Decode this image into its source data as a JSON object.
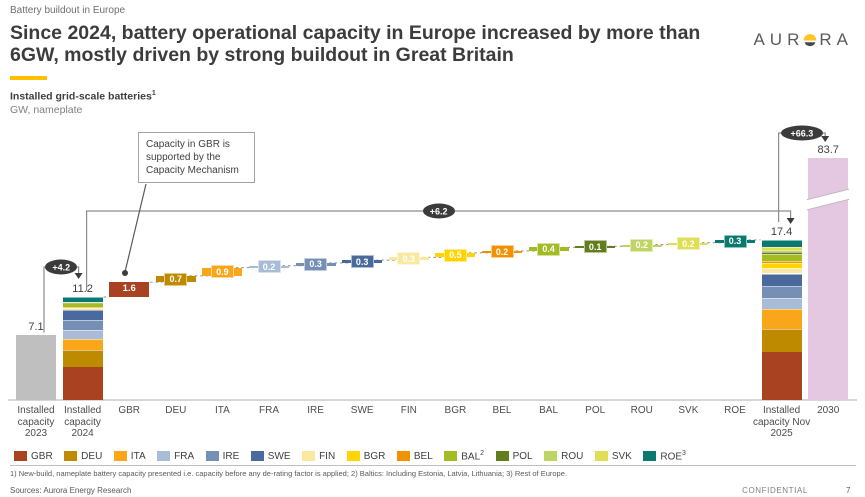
{
  "header": {
    "kicker": "Battery buildout in Europe",
    "title": "Since 2024, battery operational capacity in Europe increased by more than\n6GW, mostly driven by strong buildout in Great Britain",
    "subtitle_bold": "Installed grid-scale batteries",
    "subtitle_sup": "1",
    "subtitle_unit": "GW, nameplate",
    "accent_color": "#FFC000",
    "logo": {
      "text_before_icon": "AUR",
      "text_after_icon": "RA",
      "sun_yellow": "#FFC425",
      "sun_dark": "#48484A"
    }
  },
  "chart_data": {
    "type": "waterfall",
    "title": "Installed grid-scale batteries",
    "ylabel": "GW, nameplate",
    "columns": [
      {
        "id": "ic2023",
        "label": "Installed capacity 2023",
        "kind": "total",
        "value": 7.1,
        "color": "#BFBFBF"
      },
      {
        "id": "ic2024",
        "label": "Installed capacity 2024",
        "kind": "stacked",
        "value": 11.2,
        "stack": "base"
      },
      {
        "id": "GBR",
        "label": "GBR",
        "kind": "delta",
        "value": 1.6
      },
      {
        "id": "DEU",
        "label": "DEU",
        "kind": "delta",
        "value": 0.7
      },
      {
        "id": "ITA",
        "label": "ITA",
        "kind": "delta",
        "value": 0.9
      },
      {
        "id": "FRA",
        "label": "FRA",
        "kind": "delta",
        "value": 0.2
      },
      {
        "id": "IRE",
        "label": "IRE",
        "kind": "delta",
        "value": 0.3
      },
      {
        "id": "SWE",
        "label": "SWE",
        "kind": "delta",
        "value": 0.3
      },
      {
        "id": "FIN",
        "label": "FIN",
        "kind": "delta",
        "value": 0.3
      },
      {
        "id": "BGR",
        "label": "BGR",
        "kind": "delta",
        "value": 0.5
      },
      {
        "id": "BEL",
        "label": "BEL",
        "kind": "delta",
        "value": 0.2
      },
      {
        "id": "BAL",
        "label": "BAL",
        "kind": "delta",
        "value": 0.4
      },
      {
        "id": "POL",
        "label": "POL",
        "kind": "delta",
        "value": 0.1
      },
      {
        "id": "ROU",
        "label": "ROU",
        "kind": "delta",
        "value": 0.2
      },
      {
        "id": "SVK",
        "label": "SVK",
        "kind": "delta",
        "value": 0.2
      },
      {
        "id": "ROE",
        "label": "ROE",
        "kind": "delta",
        "value": 0.3
      },
      {
        "id": "nov2025",
        "label": "Installed capacity Nov 2025",
        "kind": "stacked",
        "value": 17.4,
        "stack": "base_plus_deltas"
      },
      {
        "id": "y2030",
        "label": "2030",
        "kind": "total",
        "value": 83.7,
        "color": "#E4C8E1",
        "axis_break": true
      }
    ],
    "stack_order": [
      "GBR",
      "DEU",
      "ITA",
      "FRA",
      "IRE",
      "SWE",
      "FIN",
      "BGR",
      "BEL",
      "BAL",
      "POL",
      "ROU",
      "SVK",
      "ROE"
    ],
    "composition_2024_estimate": {
      "GBR": 3.6,
      "DEU": 1.8,
      "ITA": 1.25,
      "FRA": 1.0,
      "IRE": 1.0,
      "SWE": 1.1,
      "FIN": 0.25,
      "BGR": 0.1,
      "BEL": 0.05,
      "BAL": 0.35,
      "POL": 0.05,
      "ROU": 0.05,
      "SVK": 0.1,
      "ROE": 0.5
    },
    "colors": {
      "GBR": "#A84220",
      "DEU": "#BD8A00",
      "ITA": "#F9A61B",
      "FRA": "#A8BCD8",
      "IRE": "#7590B4",
      "SWE": "#4A6A9D",
      "FIN": "#FBE8A0",
      "BGR": "#FFD400",
      "BEL": "#F39200",
      "BAL": "#A2BD24",
      "POL": "#637D1E",
      "ROU": "#BED562",
      "SVK": "#DFDE55",
      "ROE": "#0A7A70"
    },
    "bridges": [
      {
        "label": "+4.2",
        "from": "ic2023",
        "to": "ic2024"
      },
      {
        "label": "+6.2",
        "from": "ic2024",
        "to": "nov2025"
      },
      {
        "label": "+66.3",
        "from": "nov2025",
        "to": "y2030"
      }
    ],
    "callout": "Capacity in GBR is\nsupported by the\nCapacity Mechanism",
    "legend": [
      {
        "code": "GBR"
      },
      {
        "code": "DEU"
      },
      {
        "code": "ITA"
      },
      {
        "code": "FRA"
      },
      {
        "code": "IRE"
      },
      {
        "code": "SWE"
      },
      {
        "code": "FIN"
      },
      {
        "code": "BGR"
      },
      {
        "code": "BEL"
      },
      {
        "code": "BAL",
        "sup": "2"
      },
      {
        "code": "POL"
      },
      {
        "code": "ROU"
      },
      {
        "code": "SVK"
      },
      {
        "code": "ROE",
        "sup": "3"
      }
    ]
  },
  "footer": {
    "footnote": "1) New-build, nameplate battery capacity presented i.e. capacity before any de-rating factor is applied; 2) Baltics: Including Estonia, Latvia, Lithuania; 3) Rest of Europe.",
    "sources": "Sources: Aurora Energy Research",
    "confidential": "CONFIDENTIAL",
    "page": "7"
  }
}
